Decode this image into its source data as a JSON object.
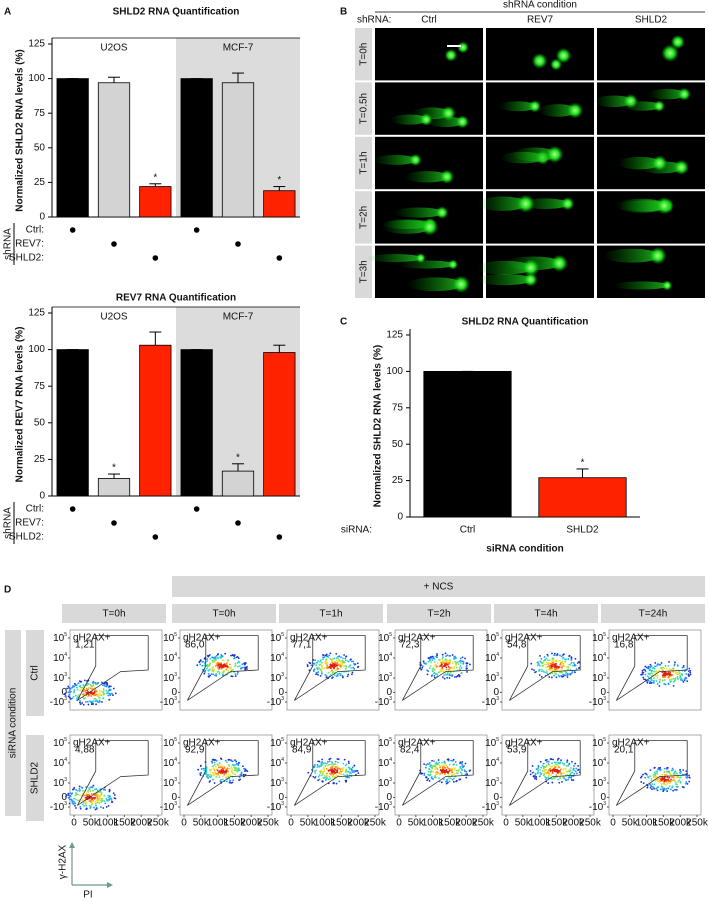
{
  "panel_labels": [
    "A",
    "B",
    "C",
    "D"
  ],
  "chart_data": [
    {
      "type": "bar",
      "title": "SHLD2 RNA Quantification",
      "y_label": "Normalized SHLD2 RNA levels (%)",
      "groups": [
        "U2OS",
        "MCF-7"
      ],
      "shaded_groups": [
        1
      ],
      "shade_color": "#dcdcdc",
      "values": [
        100,
        97,
        22,
        100,
        97,
        19
      ],
      "errors": [
        0,
        4,
        2,
        0,
        7,
        3
      ],
      "colors": [
        "#000000",
        "#d3d3d3",
        "#ff2200",
        "#000000",
        "#d3d3d3",
        "#ff2200"
      ],
      "significance": [
        {
          "bar": 2,
          "label": "*"
        },
        {
          "bar": 5,
          "label": "*"
        }
      ],
      "ylim": [
        0,
        125
      ],
      "yticks": [
        0,
        25,
        50,
        75,
        100,
        125
      ],
      "design": {
        "label": "shRNA",
        "rows": [
          "Ctrl:",
          "REV7:",
          "SHLD2:"
        ],
        "row_of_bar": [
          0,
          1,
          2,
          0,
          1,
          2
        ]
      }
    },
    {
      "type": "bar",
      "title": "REV7 RNA Quantification",
      "y_label": "Normalized REV7 RNA levels (%)",
      "groups": [
        "U2OS",
        "MCF-7"
      ],
      "shaded_groups": [
        1
      ],
      "shade_color": "#dcdcdc",
      "values": [
        100,
        12,
        103,
        100,
        17,
        98
      ],
      "errors": [
        0,
        3,
        9,
        0,
        5,
        5
      ],
      "colors": [
        "#000000",
        "#d3d3d3",
        "#ff2200",
        "#000000",
        "#d3d3d3",
        "#ff2200"
      ],
      "significance": [
        {
          "bar": 1,
          "label": "*"
        },
        {
          "bar": 4,
          "label": "*"
        }
      ],
      "ylim": [
        0,
        125
      ],
      "yticks": [
        0,
        25,
        50,
        75,
        100,
        125
      ],
      "design": {
        "label": "shRNA",
        "rows": [
          "Ctrl:",
          "REV7:",
          "SHLD2:"
        ],
        "row_of_bar": [
          0,
          1,
          2,
          0,
          1,
          2
        ]
      }
    },
    {
      "type": "bar",
      "title": "SHLD2 RNA Quantification",
      "y_label": "Normalized SHLD2 RNA levels (%)",
      "categories": [
        "Ctrl",
        "SHLD2"
      ],
      "x_prefix": "siRNA:",
      "x_label": "siRNA condition",
      "values": [
        100,
        27
      ],
      "errors": [
        0,
        6
      ],
      "colors": [
        "#000000",
        "#ff2200"
      ],
      "significance": [
        {
          "bar": 1,
          "label": "*"
        }
      ],
      "ylim": [
        0,
        125
      ],
      "yticks": [
        0,
        25,
        50,
        75,
        100,
        125
      ]
    }
  ],
  "comet": {
    "header": "shRNA condition",
    "row_label": "shRNA:",
    "columns": [
      "Ctrl",
      "REV7",
      "SHLD2"
    ],
    "rows": [
      "T=0h",
      "T=0.5h",
      "T=1h",
      "T=2h",
      "T=3h"
    ]
  },
  "flow": {
    "treatment": "+ NCS",
    "treated_columns": [
      1,
      2,
      3,
      4,
      5
    ],
    "columns": [
      "T=0h",
      "T=0h",
      "T=1h",
      "T=2h",
      "T=4h",
      "T=24h"
    ],
    "group_label": "siRNA condition",
    "rows": [
      "Ctrl",
      "SHLD2"
    ],
    "gate_label": "gH2AX+",
    "gate_values": [
      [
        "1,21",
        "86,0",
        "77,1",
        "72,3",
        "54,8",
        "16,8"
      ],
      [
        "4,88",
        "92,9",
        "84,9",
        "82,4",
        "53,9",
        "20,1"
      ]
    ],
    "xticks": [
      "0",
      "50k",
      "100k",
      "150k",
      "200k",
      "250k"
    ],
    "yticks": [
      {
        "base": "10",
        "exp": "5"
      },
      {
        "base": "10",
        "exp": "4"
      },
      {
        "base": "10",
        "exp": "3"
      },
      "0",
      {
        "base": "-10",
        "exp": "3"
      }
    ],
    "y_axis": "γ-H2AX",
    "x_axis": "PI"
  }
}
